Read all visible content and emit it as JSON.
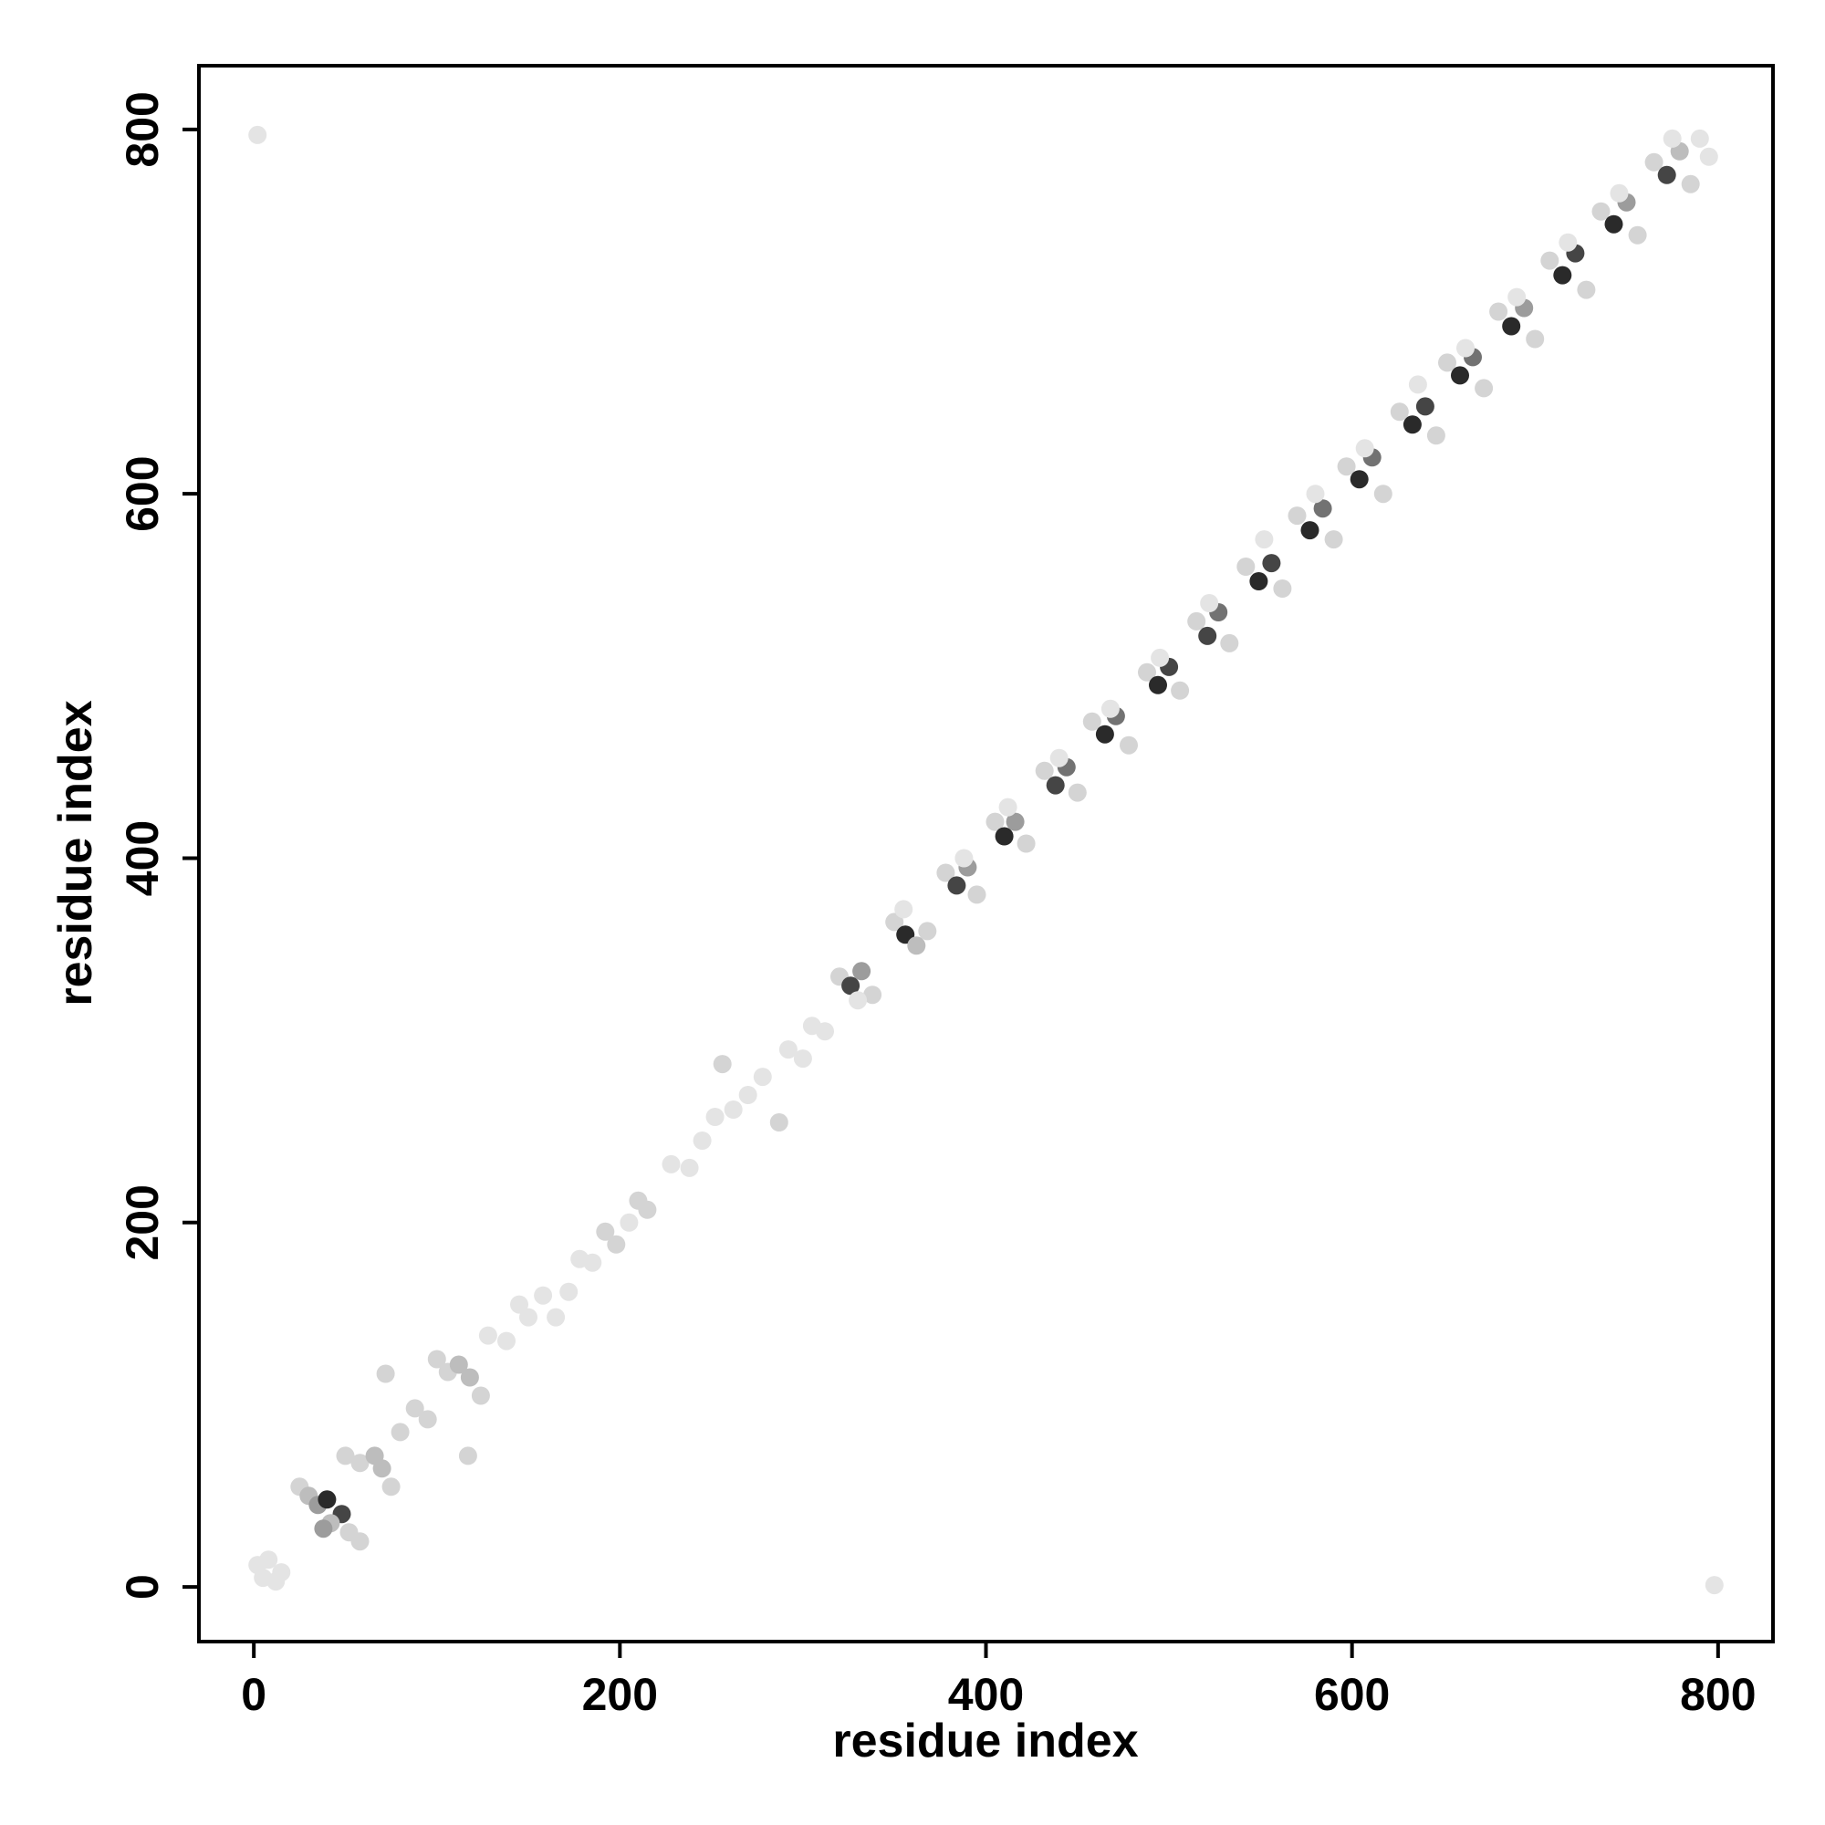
{
  "chart_data": {
    "type": "scatter",
    "title": "",
    "xlabel": "residue index",
    "ylabel": "residue index",
    "xlim": [
      -30,
      830
    ],
    "ylim": [
      -30,
      835
    ],
    "x_ticks": [
      0,
      200,
      400,
      600,
      800
    ],
    "y_ticks": [
      0,
      200,
      400,
      600,
      800
    ],
    "grid": false,
    "legend": "none",
    "point_colors": [
      "#e4e4e4",
      "#d4d4d4",
      "#bdbdbd",
      "#9c9c9c",
      "#727272",
      "#454545",
      "#2a2a2a"
    ],
    "points": [
      {
        "x": 2,
        "y": 797,
        "s": 0
      },
      {
        "x": 798,
        "y": 1,
        "s": 0
      },
      {
        "x": 2,
        "y": 12,
        "s": 0
      },
      {
        "x": 8,
        "y": 15,
        "s": 0
      },
      {
        "x": 12,
        "y": 3,
        "s": 0
      },
      {
        "x": 5,
        "y": 5,
        "s": 0
      },
      {
        "x": 15,
        "y": 8,
        "s": 0
      },
      {
        "x": 25,
        "y": 55,
        "s": 1
      },
      {
        "x": 30,
        "y": 50,
        "s": 2
      },
      {
        "x": 35,
        "y": 45,
        "s": 3
      },
      {
        "x": 40,
        "y": 48,
        "s": 6
      },
      {
        "x": 48,
        "y": 40,
        "s": 5
      },
      {
        "x": 42,
        "y": 35,
        "s": 2
      },
      {
        "x": 52,
        "y": 30,
        "s": 1
      },
      {
        "x": 58,
        "y": 25,
        "s": 1
      },
      {
        "x": 38,
        "y": 32,
        "s": 3
      },
      {
        "x": 50,
        "y": 72,
        "s": 1
      },
      {
        "x": 58,
        "y": 68,
        "s": 1
      },
      {
        "x": 66,
        "y": 72,
        "s": 2
      },
      {
        "x": 70,
        "y": 65,
        "s": 2
      },
      {
        "x": 75,
        "y": 55,
        "s": 1
      },
      {
        "x": 72,
        "y": 117,
        "s": 1
      },
      {
        "x": 80,
        "y": 85,
        "s": 1
      },
      {
        "x": 88,
        "y": 98,
        "s": 1
      },
      {
        "x": 95,
        "y": 92,
        "s": 1
      },
      {
        "x": 100,
        "y": 125,
        "s": 1
      },
      {
        "x": 106,
        "y": 118,
        "s": 1
      },
      {
        "x": 112,
        "y": 122,
        "s": 2
      },
      {
        "x": 118,
        "y": 115,
        "s": 2
      },
      {
        "x": 124,
        "y": 105,
        "s": 1
      },
      {
        "x": 117,
        "y": 72,
        "s": 1
      },
      {
        "x": 128,
        "y": 138,
        "s": 0
      },
      {
        "x": 138,
        "y": 135,
        "s": 0
      },
      {
        "x": 145,
        "y": 155,
        "s": 0
      },
      {
        "x": 150,
        "y": 148,
        "s": 0
      },
      {
        "x": 158,
        "y": 160,
        "s": 0
      },
      {
        "x": 165,
        "y": 148,
        "s": 0
      },
      {
        "x": 172,
        "y": 162,
        "s": 0
      },
      {
        "x": 178,
        "y": 180,
        "s": 0
      },
      {
        "x": 185,
        "y": 178,
        "s": 0
      },
      {
        "x": 192,
        "y": 195,
        "s": 1
      },
      {
        "x": 198,
        "y": 188,
        "s": 1
      },
      {
        "x": 205,
        "y": 200,
        "s": 0
      },
      {
        "x": 210,
        "y": 212,
        "s": 1
      },
      {
        "x": 215,
        "y": 207,
        "s": 1
      },
      {
        "x": 228,
        "y": 232,
        "s": 0
      },
      {
        "x": 238,
        "y": 230,
        "s": 0
      },
      {
        "x": 245,
        "y": 245,
        "s": 0
      },
      {
        "x": 252,
        "y": 258,
        "s": 0
      },
      {
        "x": 256,
        "y": 287,
        "s": 1
      },
      {
        "x": 262,
        "y": 262,
        "s": 0
      },
      {
        "x": 270,
        "y": 270,
        "s": 0
      },
      {
        "x": 278,
        "y": 280,
        "s": 0
      },
      {
        "x": 287,
        "y": 255,
        "s": 1
      },
      {
        "x": 292,
        "y": 295,
        "s": 0
      },
      {
        "x": 300,
        "y": 290,
        "s": 0
      },
      {
        "x": 305,
        "y": 308,
        "s": 0
      },
      {
        "x": 312,
        "y": 305,
        "s": 0
      },
      {
        "x": 320,
        "y": 335,
        "s": 1
      },
      {
        "x": 326,
        "y": 330,
        "s": 5
      },
      {
        "x": 332,
        "y": 338,
        "s": 3
      },
      {
        "x": 338,
        "y": 325,
        "s": 1
      },
      {
        "x": 330,
        "y": 322,
        "s": 0
      },
      {
        "x": 350,
        "y": 365,
        "s": 1
      },
      {
        "x": 356,
        "y": 358,
        "s": 6
      },
      {
        "x": 362,
        "y": 352,
        "s": 2
      },
      {
        "x": 368,
        "y": 360,
        "s": 1
      },
      {
        "x": 355,
        "y": 372,
        "s": 0
      },
      {
        "x": 378,
        "y": 392,
        "s": 1
      },
      {
        "x": 384,
        "y": 385,
        "s": 5
      },
      {
        "x": 390,
        "y": 395,
        "s": 3
      },
      {
        "x": 395,
        "y": 380,
        "s": 1
      },
      {
        "x": 388,
        "y": 400,
        "s": 0
      },
      {
        "x": 405,
        "y": 420,
        "s": 1
      },
      {
        "x": 410,
        "y": 412,
        "s": 6
      },
      {
        "x": 416,
        "y": 420,
        "s": 3
      },
      {
        "x": 422,
        "y": 408,
        "s": 1
      },
      {
        "x": 412,
        "y": 428,
        "s": 0
      },
      {
        "x": 432,
        "y": 448,
        "s": 1
      },
      {
        "x": 438,
        "y": 440,
        "s": 5
      },
      {
        "x": 444,
        "y": 450,
        "s": 4
      },
      {
        "x": 450,
        "y": 436,
        "s": 1
      },
      {
        "x": 440,
        "y": 455,
        "s": 0
      },
      {
        "x": 458,
        "y": 475,
        "s": 1
      },
      {
        "x": 465,
        "y": 468,
        "s": 6
      },
      {
        "x": 471,
        "y": 478,
        "s": 4
      },
      {
        "x": 478,
        "y": 462,
        "s": 1
      },
      {
        "x": 468,
        "y": 482,
        "s": 0
      },
      {
        "x": 488,
        "y": 502,
        "s": 1
      },
      {
        "x": 494,
        "y": 495,
        "s": 6
      },
      {
        "x": 500,
        "y": 505,
        "s": 5
      },
      {
        "x": 506,
        "y": 492,
        "s": 1
      },
      {
        "x": 495,
        "y": 510,
        "s": 0
      },
      {
        "x": 515,
        "y": 530,
        "s": 1
      },
      {
        "x": 521,
        "y": 522,
        "s": 5
      },
      {
        "x": 527,
        "y": 535,
        "s": 4
      },
      {
        "x": 533,
        "y": 518,
        "s": 1
      },
      {
        "x": 522,
        "y": 540,
        "s": 0
      },
      {
        "x": 542,
        "y": 560,
        "s": 1
      },
      {
        "x": 549,
        "y": 552,
        "s": 6
      },
      {
        "x": 556,
        "y": 562,
        "s": 5
      },
      {
        "x": 562,
        "y": 548,
        "s": 1
      },
      {
        "x": 552,
        "y": 575,
        "s": 0
      },
      {
        "x": 570,
        "y": 588,
        "s": 1
      },
      {
        "x": 577,
        "y": 580,
        "s": 6
      },
      {
        "x": 584,
        "y": 592,
        "s": 4
      },
      {
        "x": 590,
        "y": 575,
        "s": 1
      },
      {
        "x": 580,
        "y": 600,
        "s": 0
      },
      {
        "x": 597,
        "y": 615,
        "s": 1
      },
      {
        "x": 604,
        "y": 608,
        "s": 6
      },
      {
        "x": 611,
        "y": 620,
        "s": 4
      },
      {
        "x": 617,
        "y": 600,
        "s": 1
      },
      {
        "x": 607,
        "y": 625,
        "s": 0
      },
      {
        "x": 626,
        "y": 645,
        "s": 1
      },
      {
        "x": 633,
        "y": 638,
        "s": 6
      },
      {
        "x": 640,
        "y": 648,
        "s": 5
      },
      {
        "x": 646,
        "y": 632,
        "s": 1
      },
      {
        "x": 636,
        "y": 660,
        "s": 0
      },
      {
        "x": 652,
        "y": 672,
        "s": 1
      },
      {
        "x": 659,
        "y": 665,
        "s": 6
      },
      {
        "x": 666,
        "y": 675,
        "s": 4
      },
      {
        "x": 672,
        "y": 658,
        "s": 1
      },
      {
        "x": 662,
        "y": 680,
        "s": 0
      },
      {
        "x": 680,
        "y": 700,
        "s": 1
      },
      {
        "x": 687,
        "y": 692,
        "s": 6
      },
      {
        "x": 694,
        "y": 702,
        "s": 3
      },
      {
        "x": 700,
        "y": 685,
        "s": 1
      },
      {
        "x": 690,
        "y": 708,
        "s": 0
      },
      {
        "x": 708,
        "y": 728,
        "s": 1
      },
      {
        "x": 715,
        "y": 720,
        "s": 6
      },
      {
        "x": 722,
        "y": 732,
        "s": 5
      },
      {
        "x": 728,
        "y": 712,
        "s": 1
      },
      {
        "x": 718,
        "y": 738,
        "s": 0
      },
      {
        "x": 736,
        "y": 755,
        "s": 1
      },
      {
        "x": 743,
        "y": 748,
        "s": 6
      },
      {
        "x": 750,
        "y": 760,
        "s": 3
      },
      {
        "x": 756,
        "y": 742,
        "s": 1
      },
      {
        "x": 746,
        "y": 765,
        "s": 0
      },
      {
        "x": 765,
        "y": 782,
        "s": 1
      },
      {
        "x": 772,
        "y": 775,
        "s": 5
      },
      {
        "x": 779,
        "y": 788,
        "s": 2
      },
      {
        "x": 785,
        "y": 770,
        "s": 1
      },
      {
        "x": 775,
        "y": 795,
        "s": 0
      },
      {
        "x": 790,
        "y": 795,
        "s": 0
      },
      {
        "x": 795,
        "y": 785,
        "s": 0
      }
    ]
  }
}
